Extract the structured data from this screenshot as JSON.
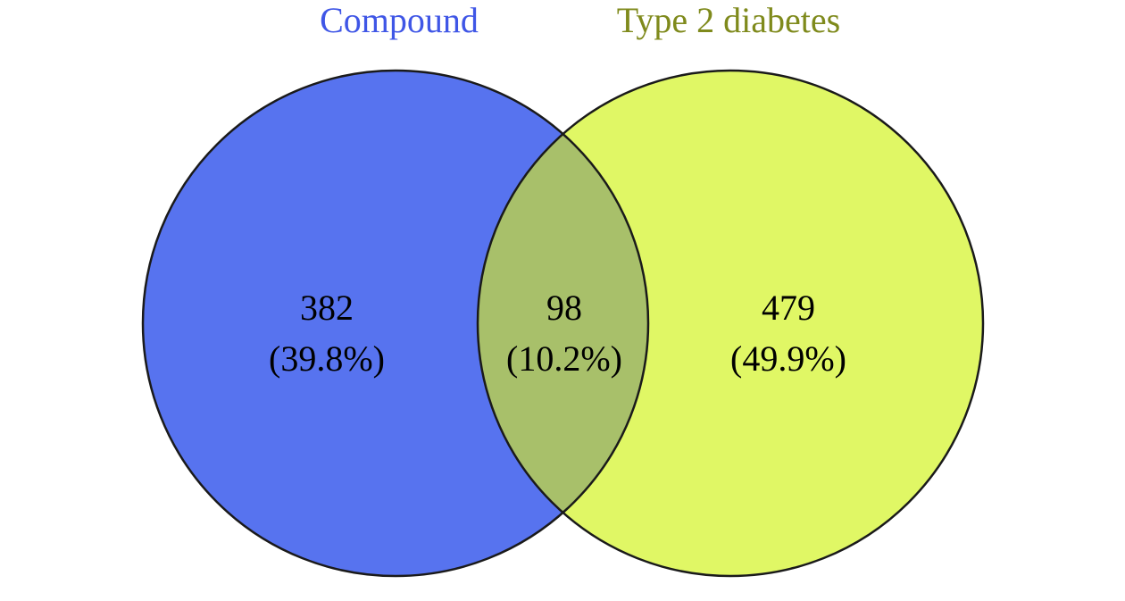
{
  "sets": [
    {
      "name": "Compound",
      "color": "#5773ef",
      "title_color": "#3f56e6"
    },
    {
      "name": "Type 2 diabetes",
      "color": "#e0f765",
      "title_color": "#7f8a1c"
    }
  ],
  "overlap_color": "#a8c06a",
  "outline_color": "#1a1a1a",
  "regions": {
    "left": {
      "count": "382",
      "percent": "(39.8%)"
    },
    "intersection": {
      "count": "98",
      "percent": "(10.2%)"
    },
    "right": {
      "count": "479",
      "percent": "(49.9%)"
    }
  }
}
